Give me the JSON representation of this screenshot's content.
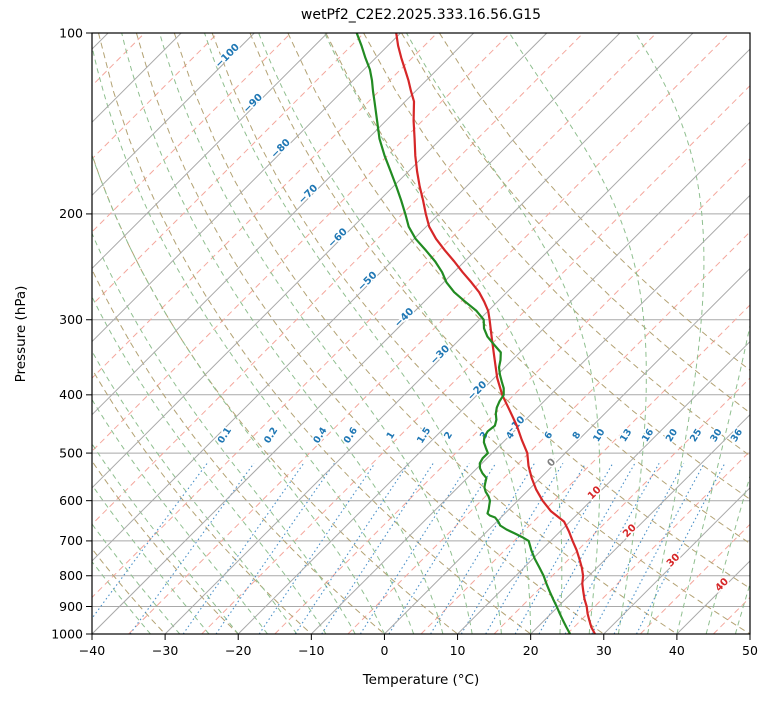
{
  "title": "wetPf2_C2E2.2025.333.16.56.G15",
  "axes": {
    "xlabel": "Temperature (°C)",
    "ylabel": "Pressure (hPa)",
    "x_ticks": [
      "−40",
      "−30",
      "−20",
      "−10",
      "0",
      "10",
      "20",
      "30",
      "40",
      "50"
    ],
    "x_tick_values": [
      -40,
      -30,
      -20,
      -10,
      0,
      10,
      20,
      30,
      40,
      50
    ],
    "y_ticks": [
      "100",
      "200",
      "300",
      "400",
      "500",
      "600",
      "700",
      "800",
      "900",
      "1000"
    ],
    "y_tick_values": [
      100,
      200,
      300,
      400,
      500,
      600,
      700,
      800,
      900,
      1000
    ]
  },
  "chart_data": {
    "type": "line",
    "subtype": "skewT-logP-sounding",
    "title": "wetPf2_C2E2.2025.333.16.56.G15",
    "xlabel": "Temperature (°C)",
    "ylabel": "Pressure (hPa)",
    "xlim": [
      -40,
      50
    ],
    "pressure_range": [
      100,
      1000
    ],
    "skew_deg": 45,
    "style": {
      "grid_color": "#a9a9a9",
      "frame_color": "#000000"
    },
    "isotherms": {
      "min": -120,
      "max": 50,
      "step": 10,
      "color": "#a9a9a9"
    },
    "isotherms_minor": {
      "min": -115,
      "max": 45,
      "step": 10,
      "color": "#f4a79d"
    },
    "dry_adiabats": {
      "min": -40,
      "max": 110,
      "step": 10,
      "color": "#b3a273"
    },
    "moist_adiabats": {
      "min": -32,
      "max": 60,
      "step": 4,
      "color": "#8fbf8f"
    },
    "mixing_lines": {
      "values": [
        0.1,
        0.2,
        0.4,
        0.6,
        1,
        1.5,
        2,
        3,
        4,
        6,
        8,
        10,
        13,
        16,
        20,
        25,
        30,
        36
      ],
      "labels": [
        "0.1",
        "0.2",
        "0.4",
        "0.6",
        "1",
        "1.5",
        "2",
        "3",
        "4",
        "6",
        "8",
        "10",
        "13",
        "16",
        "20",
        "25",
        "30",
        "36"
      ],
      "p_top": 492,
      "label_p": 470,
      "color": "#4a90c8",
      "label_color": "#1f77b4"
    },
    "isotherm_labels": [
      {
        "text": "−100",
        "value": -100,
        "p": 110,
        "color": "#1f77b4"
      },
      {
        "text": "−90",
        "value": -90,
        "p": 132,
        "color": "#1f77b4"
      },
      {
        "text": "−80",
        "value": -80,
        "p": 157,
        "color": "#1f77b4"
      },
      {
        "text": "−70",
        "value": -70,
        "p": 187,
        "color": "#1f77b4"
      },
      {
        "text": "−60",
        "value": -60,
        "p": 221,
        "color": "#1f77b4"
      },
      {
        "text": "−50",
        "value": -50,
        "p": 261,
        "color": "#1f77b4"
      },
      {
        "text": "−40",
        "value": -40,
        "p": 300,
        "color": "#1f77b4"
      },
      {
        "text": "−30",
        "value": -30,
        "p": 346,
        "color": "#1f77b4"
      },
      {
        "text": "−20",
        "value": -20,
        "p": 397,
        "color": "#1f77b4"
      },
      {
        "text": "−10",
        "value": -10,
        "p": 454,
        "color": "#1f77b4"
      },
      {
        "text": "0",
        "value": 0,
        "p": 523,
        "color": "#808080"
      },
      {
        "text": "10",
        "value": 10,
        "p": 587,
        "color": "#d62728"
      },
      {
        "text": "20",
        "value": 20,
        "p": 679,
        "color": "#d62728"
      },
      {
        "text": "30",
        "value": 30,
        "p": 760,
        "color": "#d62728"
      },
      {
        "text": "40",
        "value": 40,
        "p": 835,
        "color": "#d62728"
      }
    ],
    "series": [
      {
        "name": "temperature",
        "color": "#d62728",
        "points": [
          [
            1000,
            28.8
          ],
          [
            975,
            27.4
          ],
          [
            950,
            26.2
          ],
          [
            925,
            25.0
          ],
          [
            900,
            23.9
          ],
          [
            875,
            22.6
          ],
          [
            850,
            21.4
          ],
          [
            825,
            20.2
          ],
          [
            800,
            19.2
          ],
          [
            775,
            17.9
          ],
          [
            750,
            16.4
          ],
          [
            725,
            14.8
          ],
          [
            700,
            13.0
          ],
          [
            675,
            11.2
          ],
          [
            650,
            9.2
          ],
          [
            625,
            6.0
          ],
          [
            600,
            3.4
          ],
          [
            575,
            1.0
          ],
          [
            550,
            -1.2
          ],
          [
            525,
            -3.3
          ],
          [
            500,
            -5.2
          ],
          [
            475,
            -7.8
          ],
          [
            450,
            -10.4
          ],
          [
            425,
            -13.4
          ],
          [
            400,
            -16.6
          ],
          [
            375,
            -19.6
          ],
          [
            350,
            -22.4
          ],
          [
            325,
            -25.4
          ],
          [
            300,
            -28.6
          ],
          [
            290,
            -30.0
          ],
          [
            280,
            -31.8
          ],
          [
            270,
            -33.8
          ],
          [
            260,
            -36.2
          ],
          [
            250,
            -38.8
          ],
          [
            240,
            -41.4
          ],
          [
            230,
            -44.2
          ],
          [
            220,
            -47.0
          ],
          [
            210,
            -49.6
          ],
          [
            200,
            -51.8
          ],
          [
            190,
            -54.0
          ],
          [
            180,
            -56.4
          ],
          [
            170,
            -58.8
          ],
          [
            160,
            -61.2
          ],
          [
            150,
            -63.6
          ],
          [
            140,
            -66.2
          ],
          [
            130,
            -68.8
          ],
          [
            125,
            -70.6
          ],
          [
            120,
            -72.4
          ],
          [
            115,
            -74.4
          ],
          [
            110,
            -76.5
          ],
          [
            105,
            -78.6
          ],
          [
            100,
            -80.6
          ]
        ]
      },
      {
        "name": "dewpoint",
        "color": "#228B22",
        "points": [
          [
            1000,
            25.4
          ],
          [
            975,
            24.0
          ],
          [
            950,
            22.6
          ],
          [
            925,
            21.2
          ],
          [
            900,
            19.8
          ],
          [
            875,
            18.3
          ],
          [
            850,
            16.8
          ],
          [
            825,
            15.3
          ],
          [
            800,
            13.8
          ],
          [
            775,
            12.1
          ],
          [
            750,
            10.3
          ],
          [
            725,
            8.6
          ],
          [
            700,
            7.0
          ],
          [
            690,
            5.6
          ],
          [
            680,
            4.0
          ],
          [
            670,
            2.4
          ],
          [
            660,
            1.0
          ],
          [
            650,
            0.2
          ],
          [
            640,
            -0.8
          ],
          [
            635,
            -1.8
          ],
          [
            630,
            -2.4
          ],
          [
            620,
            -2.8
          ],
          [
            610,
            -3.3
          ],
          [
            600,
            -3.8
          ],
          [
            590,
            -4.6
          ],
          [
            580,
            -5.6
          ],
          [
            570,
            -6.4
          ],
          [
            560,
            -6.9
          ],
          [
            550,
            -7.4
          ],
          [
            540,
            -8.6
          ],
          [
            530,
            -9.6
          ],
          [
            520,
            -10.3
          ],
          [
            510,
            -10.6
          ],
          [
            500,
            -10.6
          ],
          [
            490,
            -11.6
          ],
          [
            480,
            -12.6
          ],
          [
            470,
            -13.3
          ],
          [
            460,
            -13.6
          ],
          [
            450,
            -13.4
          ],
          [
            440,
            -14.0
          ],
          [
            430,
            -14.9
          ],
          [
            420,
            -15.6
          ],
          [
            410,
            -16.1
          ],
          [
            400,
            -16.4
          ],
          [
            390,
            -17.3
          ],
          [
            380,
            -18.5
          ],
          [
            370,
            -19.7
          ],
          [
            360,
            -20.8
          ],
          [
            350,
            -21.6
          ],
          [
            340,
            -22.6
          ],
          [
            330,
            -24.6
          ],
          [
            320,
            -26.6
          ],
          [
            310,
            -28.2
          ],
          [
            300,
            -29.4
          ],
          [
            290,
            -31.6
          ],
          [
            280,
            -34.4
          ],
          [
            270,
            -37.2
          ],
          [
            260,
            -39.6
          ],
          [
            250,
            -41.6
          ],
          [
            240,
            -44.0
          ],
          [
            230,
            -46.8
          ],
          [
            220,
            -49.8
          ],
          [
            210,
            -52.4
          ],
          [
            200,
            -54.6
          ],
          [
            190,
            -57.0
          ],
          [
            180,
            -59.6
          ],
          [
            170,
            -62.4
          ],
          [
            160,
            -65.4
          ],
          [
            150,
            -68.4
          ],
          [
            140,
            -71.2
          ],
          [
            130,
            -74.2
          ],
          [
            125,
            -75.8
          ],
          [
            120,
            -77.4
          ],
          [
            115,
            -79.2
          ],
          [
            110,
            -81.4
          ],
          [
            105,
            -83.6
          ],
          [
            100,
            -86.0
          ]
        ]
      }
    ]
  }
}
